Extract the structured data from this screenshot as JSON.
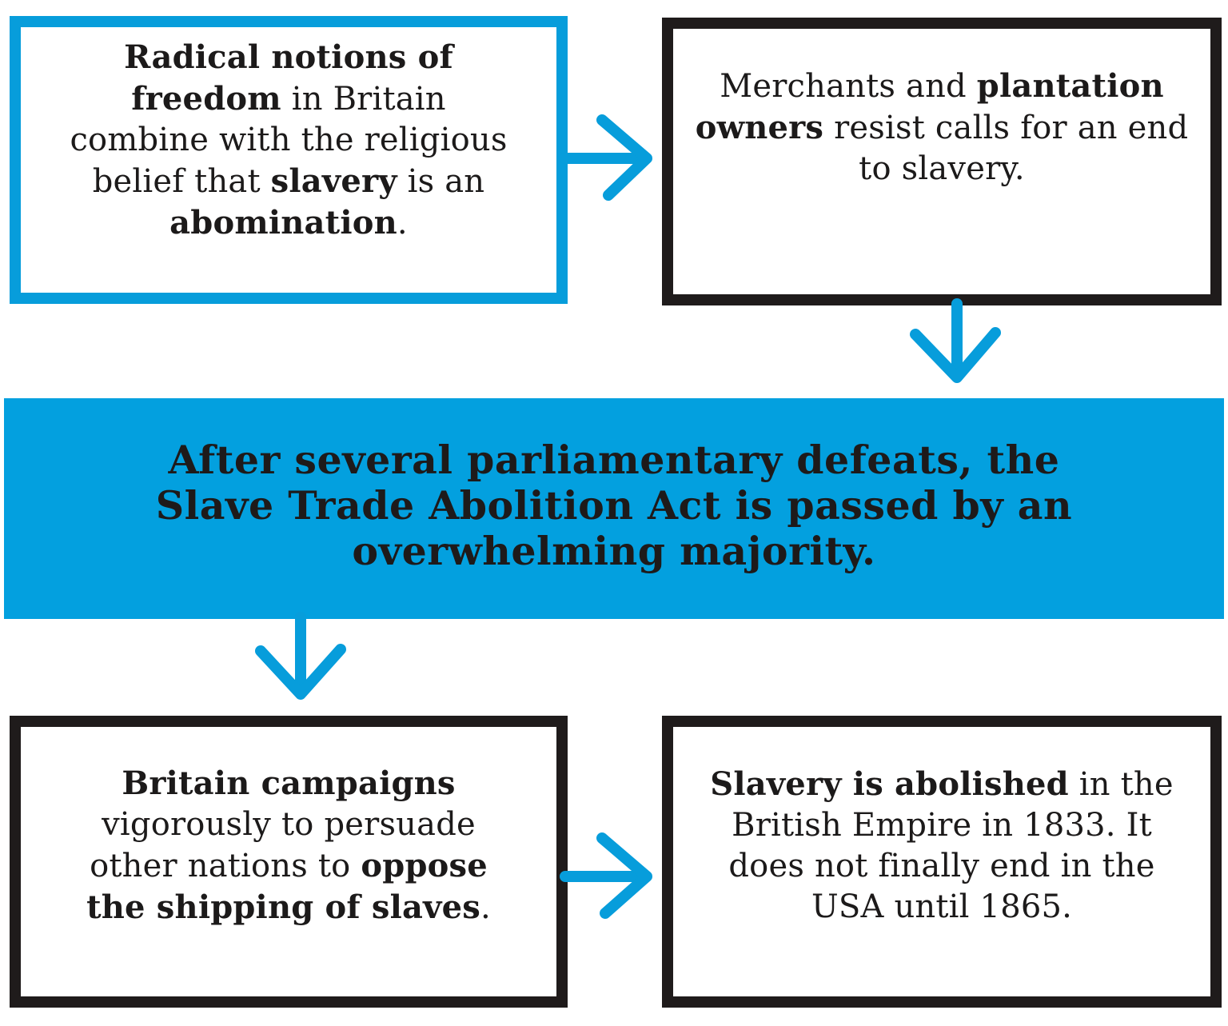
{
  "colors": {
    "accent_blue": "#079ddb",
    "banner_blue": "#03a0df",
    "ink": "#1f1b1b",
    "background": "#ffffff"
  },
  "boxes": [
    {
      "name": "freedom-box",
      "border": "blue",
      "segments": [
        {
          "text": "Radical notions of freedom",
          "bold": true
        },
        {
          "text": " in Britain combine with the religious belief that ",
          "bold": false
        },
        {
          "text": "slavery",
          "bold": true
        },
        {
          "text": " is an ",
          "bold": false
        },
        {
          "text": "abomination",
          "bold": true
        },
        {
          "text": ".",
          "bold": false
        }
      ]
    },
    {
      "name": "merchants-box",
      "border": "black",
      "segments": [
        {
          "text": "Merchants and ",
          "bold": false
        },
        {
          "text": "plantation owners",
          "bold": true
        },
        {
          "text": " resist calls for an end to slavery.",
          "bold": false
        }
      ]
    },
    {
      "name": "campaign-box",
      "border": "black",
      "segments": [
        {
          "text": "Britain campaigns",
          "bold": true
        },
        {
          "text": " vigorously to persuade other nations to ",
          "bold": false
        },
        {
          "text": "oppose the shipping of slaves",
          "bold": true
        },
        {
          "text": ".",
          "bold": false
        }
      ]
    },
    {
      "name": "abolished-box",
      "border": "black",
      "segments": [
        {
          "text": "Slavery is abolished",
          "bold": true
        },
        {
          "text": " in the British Empire in 1833. It does not finally end in the USA until 1865.",
          "bold": false
        }
      ]
    }
  ],
  "banner": {
    "text": "After several parliamentary defeats, the Slave Trade Abolition Act is passed by an overwhelming majority."
  },
  "arrows": [
    {
      "from": "freedom-box",
      "to": "merchants-box",
      "direction": "right"
    },
    {
      "from": "merchants-box",
      "to": "banner",
      "direction": "down"
    },
    {
      "from": "banner",
      "to": "campaign-box",
      "direction": "down"
    },
    {
      "from": "campaign-box",
      "to": "abolished-box",
      "direction": "right"
    }
  ]
}
